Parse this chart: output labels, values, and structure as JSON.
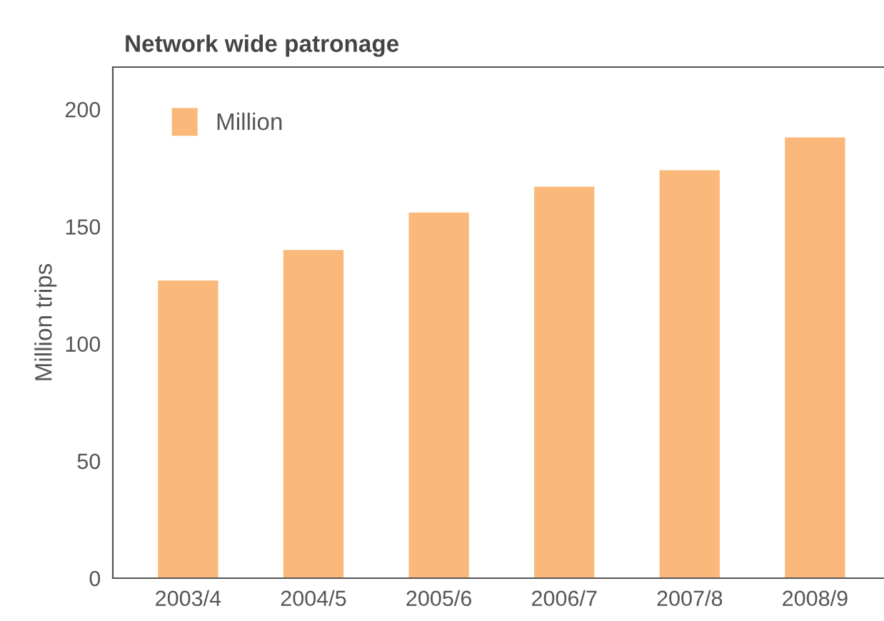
{
  "chart_data": {
    "type": "bar",
    "title": "Network wide patronage",
    "ylabel": "Million trips",
    "categories": [
      "2003/4",
      "2004/5",
      "2005/6",
      "2006/7",
      "2007/8",
      "2008/9"
    ],
    "series": [
      {
        "name": "Million",
        "color": "#fab97a",
        "values": [
          127,
          140,
          156,
          167,
          174,
          188
        ]
      }
    ],
    "ylim": [
      0,
      218
    ],
    "yticks": [
      0,
      50,
      100,
      150,
      200
    ],
    "grid": false,
    "legend": "top left"
  }
}
